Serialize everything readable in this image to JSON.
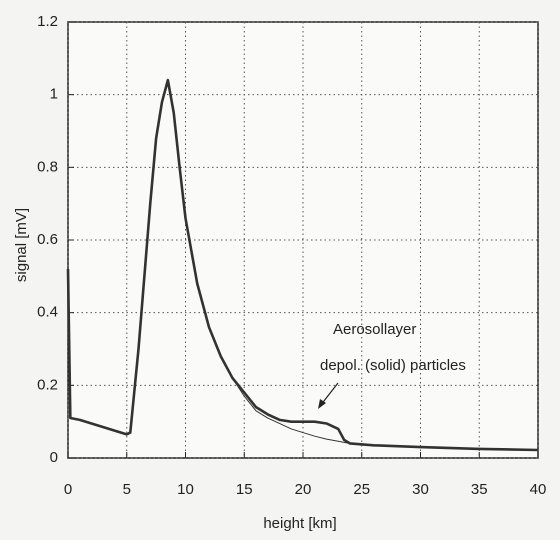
{
  "chart_data": {
    "type": "line",
    "xlabel": "height  [km]",
    "ylabel": "signal  [mV]",
    "annotation": [
      "Aerosollayer",
      "depol. (solid) particles"
    ],
    "x": [
      0,
      0.2,
      1,
      2,
      3,
      4,
      5,
      5.3,
      6,
      7,
      7.5,
      8,
      8.5,
      9,
      9.5,
      10,
      11,
      12,
      13,
      14,
      15,
      16,
      17,
      18,
      19,
      20,
      21,
      22,
      23,
      23.5,
      24,
      26,
      30,
      35,
      40
    ],
    "series": [
      {
        "color": "#333333",
        "values": [
          0.52,
          0.11,
          0.105,
          0.095,
          0.085,
          0.075,
          0.065,
          0.07,
          0.3,
          0.7,
          0.88,
          0.98,
          1.04,
          0.95,
          0.8,
          0.66,
          0.48,
          0.36,
          0.28,
          0.22,
          0.18,
          0.14,
          0.12,
          0.105,
          0.1,
          0.1,
          0.1,
          0.095,
          0.08,
          0.05,
          0.04,
          0.035,
          0.03,
          0.025,
          0.022
        ]
      },
      {
        "color": "#333333",
        "values": [
          0.52,
          0.11,
          0.105,
          0.095,
          0.085,
          0.075,
          0.065,
          0.07,
          0.3,
          0.7,
          0.88,
          0.98,
          1.03,
          0.95,
          0.8,
          0.66,
          0.48,
          0.36,
          0.28,
          0.22,
          0.17,
          0.13,
          0.11,
          0.095,
          0.08,
          0.07,
          0.06,
          0.052,
          0.046,
          0.043,
          0.04,
          0.035,
          0.03,
          0.025,
          0.022
        ]
      }
    ],
    "xlim": [
      0,
      40
    ],
    "xticks": [
      0,
      5,
      10,
      15,
      20,
      25,
      30,
      35,
      40
    ],
    "ylim": [
      0,
      1.2
    ],
    "yticks": [
      0,
      0.2,
      0.4,
      0.6,
      0.8,
      1,
      1.2
    ],
    "grid": true
  }
}
